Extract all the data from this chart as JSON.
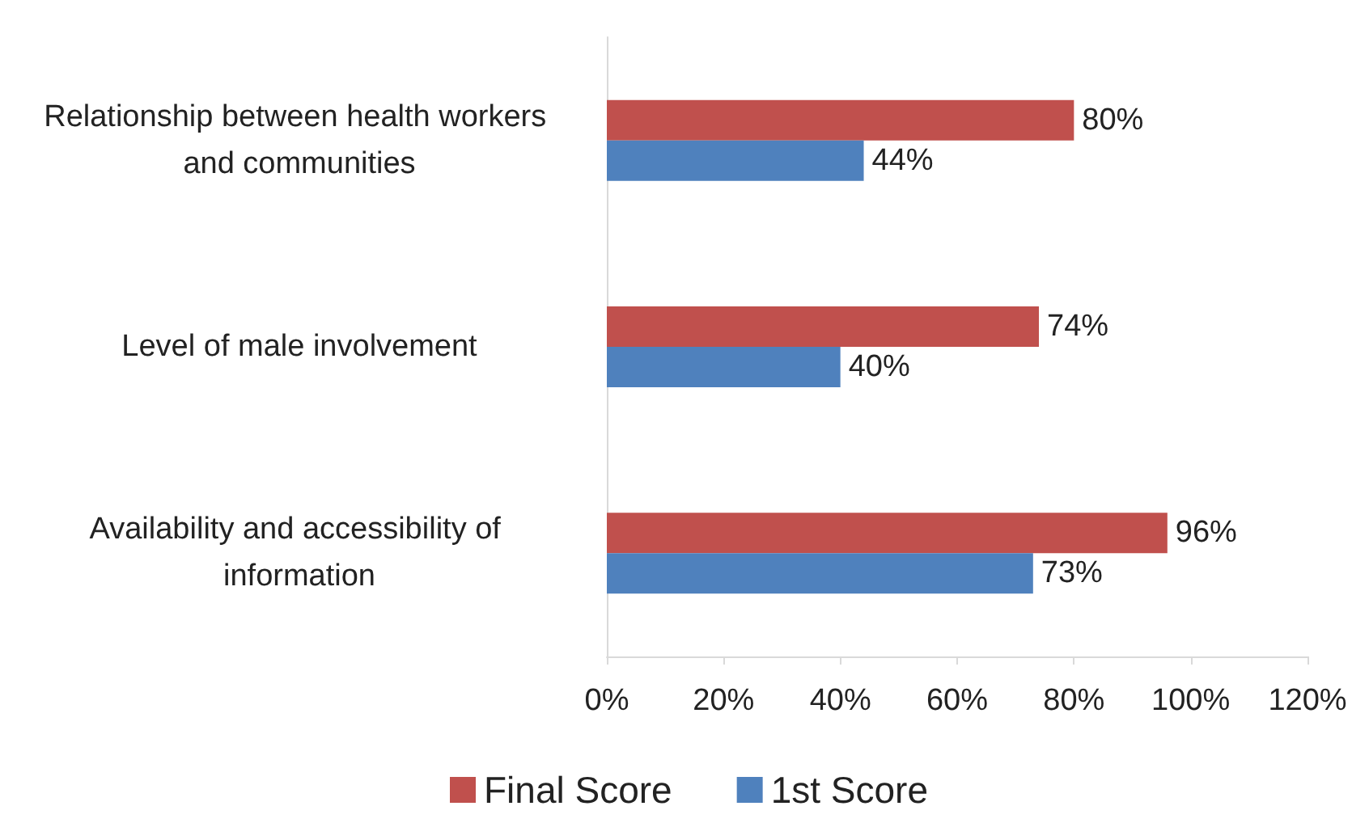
{
  "chart_data": {
    "type": "bar",
    "orientation": "horizontal",
    "categories": [
      "Relationship between health workers and communities",
      "Level of male involvement",
      "Availability and accessibility of information"
    ],
    "series": [
      {
        "name": "Final Score",
        "color": "#c0504d",
        "values": [
          80,
          74,
          96
        ],
        "value_labels": [
          "80%",
          "74%",
          "96%"
        ]
      },
      {
        "name": "1st Score",
        "color": "#4f81bd",
        "values": [
          44,
          40,
          73
        ],
        "value_labels": [
          "44%",
          "40%",
          "73%"
        ]
      }
    ],
    "xlim": [
      0,
      120
    ],
    "xticks": [
      {
        "value": 0,
        "label": "0%"
      },
      {
        "value": 20,
        "label": "20%"
      },
      {
        "value": 40,
        "label": "40%"
      },
      {
        "value": 60,
        "label": "60%"
      },
      {
        "value": 80,
        "label": "80%"
      },
      {
        "value": 100,
        "label": "100%"
      },
      {
        "value": 120,
        "label": "120%"
      }
    ],
    "grid": false,
    "legend": "bottom"
  }
}
